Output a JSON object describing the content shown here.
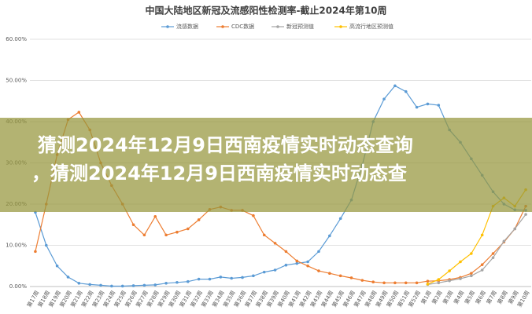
{
  "chart_data": {
    "type": "line",
    "title": "中国大陆地区新冠及流感阳性检测率-截止2024年第10周",
    "categories": [
      "第17周",
      "第18周",
      "第19周",
      "第20周",
      "第21周",
      "第22周",
      "第23周",
      "第24周",
      "第25周",
      "第26周",
      "第27周",
      "第28周",
      "第29周",
      "第30周",
      "第31周",
      "第32周",
      "第33周",
      "第34周",
      "第35周",
      "第36周",
      "第37周",
      "第38周",
      "第39周",
      "第40周",
      "第41周",
      "第42周",
      "第43周",
      "第44周",
      "第45周",
      "第46周",
      "第47周",
      "第48周",
      "第49周",
      "第50周",
      "第51周",
      "第52周",
      "第1周",
      "第2周",
      "第3周",
      "第4周",
      "第5周",
      "第6周",
      "第7周",
      "第8周",
      "第9周",
      "第10周"
    ],
    "series": [
      {
        "name": "流感数据",
        "color": "#5b9bd5",
        "values": [
          18,
          10,
          5,
          2.3,
          0.8,
          0.5,
          0.3,
          0.1,
          0.1,
          0.2,
          0.3,
          0.4,
          0.8,
          1.0,
          1.2,
          1.8,
          1.8,
          2.3,
          2.0,
          2.2,
          2.6,
          3.5,
          4.0,
          5.2,
          5.6,
          6.0,
          8.5,
          12.3,
          16.5,
          21,
          29.5,
          40,
          45.5,
          48.7,
          47.3,
          43.5,
          44.3,
          44,
          38,
          35,
          31,
          27,
          23,
          20,
          18.6,
          18.5
        ]
      },
      {
        "name": "CDC数据",
        "color": "#ed7d31",
        "values": [
          8.5,
          20,
          32,
          40.5,
          42.3,
          38,
          30,
          24.5,
          20,
          15,
          12.5,
          17,
          12.5,
          13.2,
          14,
          16.2,
          18.7,
          19.3,
          18.5,
          18.5,
          17.2,
          12.5,
          10.5,
          8.5,
          6.2,
          5.0,
          3.8,
          3.2,
          2.6,
          2.1,
          1.5,
          1.1,
          0.9,
          0.9,
          0.9,
          0.9,
          1.3,
          1.4,
          1.7,
          2.2,
          3.2,
          5.3,
          8,
          10.8,
          14,
          19.5
        ]
      },
      {
        "name": "新冠预测值",
        "color": "#a5a5a5",
        "values": [
          null,
          null,
          null,
          null,
          null,
          null,
          null,
          null,
          null,
          null,
          null,
          null,
          null,
          null,
          null,
          null,
          null,
          null,
          null,
          null,
          null,
          null,
          null,
          null,
          null,
          null,
          null,
          null,
          null,
          null,
          null,
          null,
          null,
          null,
          null,
          null,
          0.5,
          0.9,
          1.4,
          1.9,
          2.6,
          4.0,
          7.0,
          11.0,
          14.0,
          17.5
        ]
      },
      {
        "name": "高流行地区预测值",
        "color": "#ffc000",
        "values": [
          null,
          null,
          null,
          null,
          null,
          null,
          null,
          null,
          null,
          null,
          null,
          null,
          null,
          null,
          null,
          null,
          null,
          null,
          null,
          null,
          null,
          null,
          null,
          null,
          null,
          null,
          null,
          null,
          null,
          null,
          null,
          null,
          null,
          null,
          null,
          null,
          0.6,
          1.7,
          3.8,
          6.0,
          8.0,
          12.5,
          19.5,
          21.5,
          19.5,
          23.5
        ]
      }
    ],
    "ylim": [
      0,
      60
    ],
    "yticks": [
      {
        "value": 0,
        "label": "0.00%"
      },
      {
        "value": 10,
        "label": "10.00%"
      },
      {
        "value": 20,
        "label": "20.00%"
      },
      {
        "value": 30,
        "label": "30.00%"
      },
      {
        "value": 40,
        "label": "40.00%"
      },
      {
        "value": 50,
        "label": "50.00%"
      },
      {
        "value": 60,
        "label": "60.00%"
      }
    ],
    "grid": true
  },
  "banner": {
    "line1": "猜测2024年12月9日西南疫情实时动态查询",
    "line2": "，猜测2024年12月9日西南疫情实时动态查"
  }
}
